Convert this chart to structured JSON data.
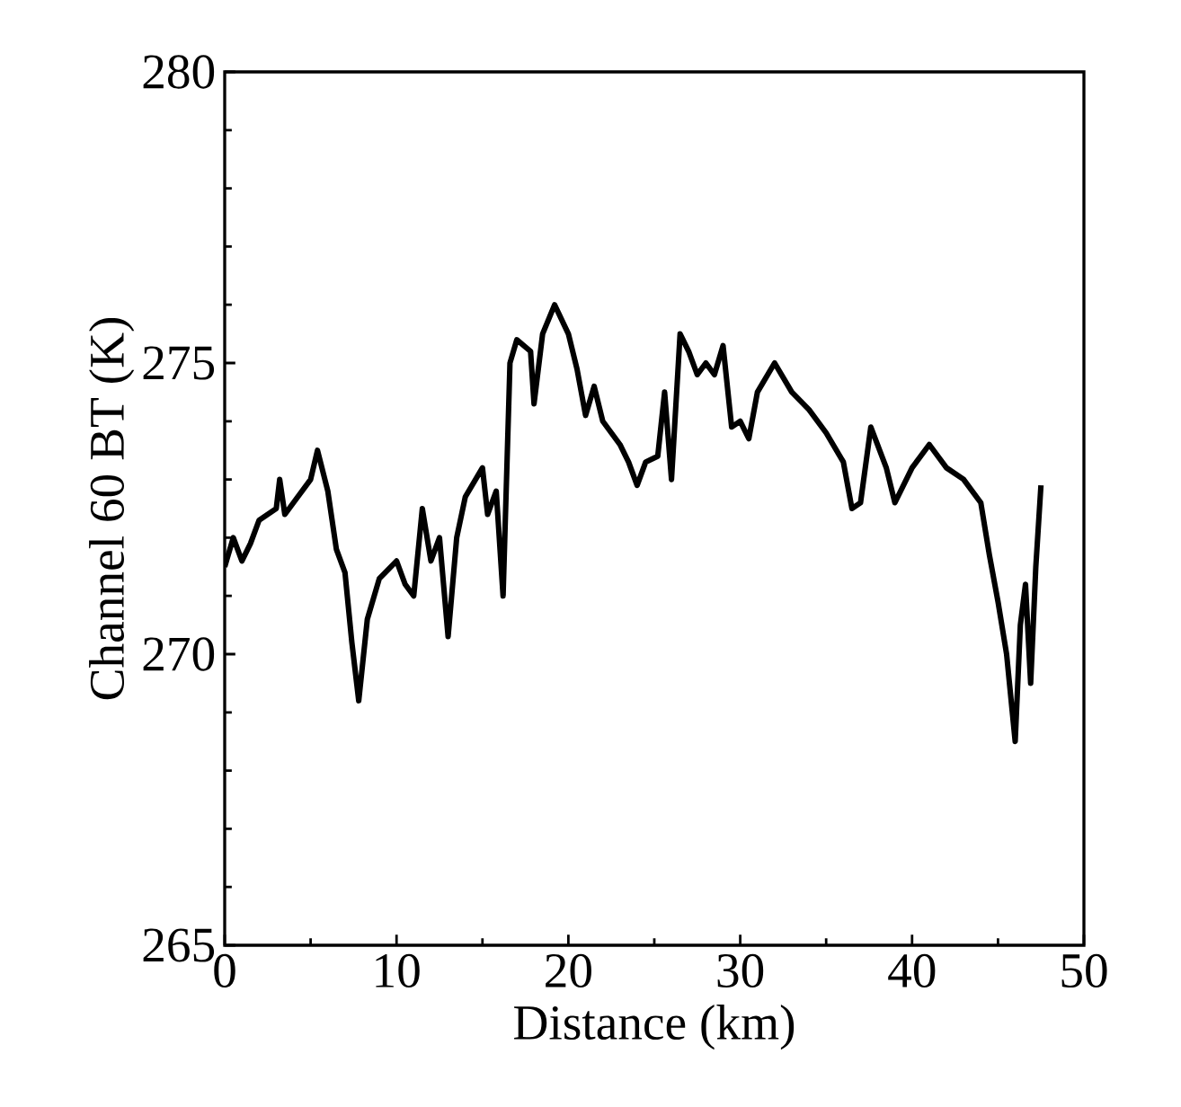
{
  "chart_data": {
    "type": "line",
    "xlabel": "Distance (km)",
    "ylabel": "Channel 60 BT (K)",
    "xlim": [
      0,
      50
    ],
    "ylim": [
      265,
      280
    ],
    "xticks": [
      0,
      10,
      20,
      30,
      40,
      50
    ],
    "yticks": [
      265,
      270,
      275,
      280
    ],
    "grid": false,
    "marker": "none",
    "line_style": "solid",
    "series": [
      {
        "color": "#000000",
        "x": [
          0,
          0.5,
          1,
          1.5,
          2,
          3,
          3.2,
          3.5,
          4,
          5,
          5.4,
          6,
          6.5,
          7,
          7.4,
          7.8,
          8.3,
          9,
          10,
          10.5,
          11,
          11.5,
          12,
          12.5,
          13,
          13.5,
          14,
          15,
          15.3,
          15.8,
          16.2,
          16.6,
          17,
          17.8,
          18,
          18.5,
          19.2,
          20,
          20.5,
          21,
          21.5,
          22,
          23,
          23.5,
          24,
          24.5,
          25.2,
          25.6,
          26,
          26.5,
          27,
          27.5,
          28,
          28.5,
          29,
          29.5,
          30,
          30.5,
          31,
          32,
          33,
          34,
          35,
          36,
          36.5,
          37,
          37.6,
          38.5,
          39,
          40,
          41,
          42,
          43,
          44,
          44.5,
          45,
          45.5,
          46,
          46.3,
          46.6,
          46.9,
          47.2,
          47.5
        ],
        "values": [
          271.5,
          272.0,
          271.6,
          271.9,
          272.3,
          272.5,
          273.0,
          272.4,
          272.6,
          273.0,
          273.5,
          272.8,
          271.8,
          271.4,
          270.2,
          269.2,
          270.6,
          271.3,
          271.6,
          271.2,
          271.0,
          272.5,
          271.6,
          272.0,
          270.3,
          272.0,
          272.7,
          273.2,
          272.4,
          272.8,
          271.0,
          275.0,
          275.4,
          275.2,
          274.3,
          275.5,
          276.0,
          275.5,
          274.9,
          274.1,
          274.6,
          274.0,
          273.6,
          273.3,
          272.9,
          273.3,
          273.4,
          274.5,
          273.0,
          275.5,
          275.2,
          274.8,
          275.0,
          274.8,
          275.3,
          273.9,
          274.0,
          273.7,
          274.5,
          275.0,
          274.5,
          274.2,
          273.8,
          273.3,
          272.5,
          272.6,
          273.9,
          273.2,
          272.6,
          273.2,
          273.6,
          273.2,
          273.0,
          272.6,
          271.7,
          270.9,
          270.0,
          268.5,
          270.5,
          271.2,
          269.5,
          271.5,
          272.9
        ]
      }
    ]
  }
}
